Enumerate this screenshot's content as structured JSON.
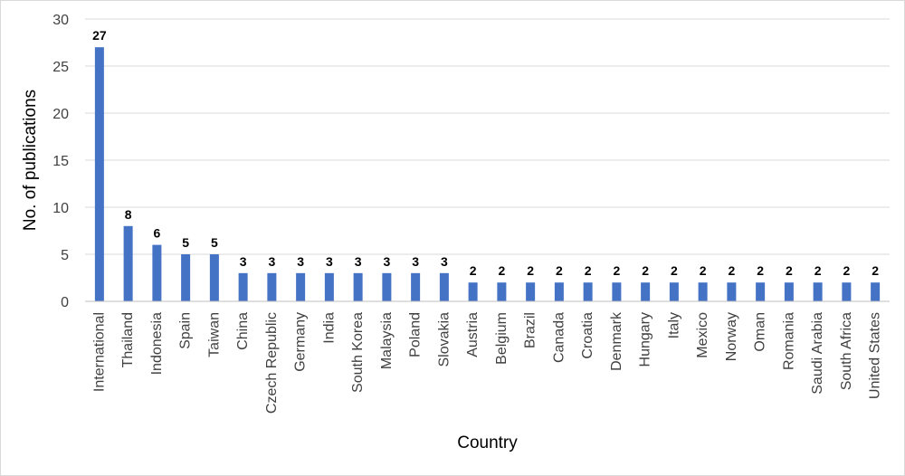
{
  "chart_data": {
    "type": "bar",
    "xlabel": "Country",
    "ylabel": "No. of publications",
    "ylim": [
      0,
      30
    ],
    "yticks": [
      0,
      5,
      10,
      15,
      20,
      25,
      30
    ],
    "grid": true,
    "legend": "none",
    "categories": [
      "International",
      "Thailand",
      "Indonesia",
      "Spain",
      "Taiwan",
      "China",
      "Czech Republic",
      "Germany",
      "India",
      "South Korea",
      "Malaysia",
      "Poland",
      "Slovakia",
      "Austria",
      "Belgium",
      "Brazil",
      "Canada",
      "Croatia",
      "Denmark",
      "Hungary",
      "Italy",
      "Mexico",
      "Norway",
      "Oman",
      "Romania",
      "Saudi Arabia",
      "South Africa",
      "United States"
    ],
    "values": [
      27,
      8,
      6,
      5,
      5,
      3,
      3,
      3,
      3,
      3,
      3,
      3,
      3,
      2,
      2,
      2,
      2,
      2,
      2,
      2,
      2,
      2,
      2,
      2,
      2,
      2,
      2,
      2
    ],
    "data_labels": true,
    "colors": {
      "bar": "#4472C4",
      "grid": "#d9d9d9",
      "axis": "#bfbfbf"
    }
  }
}
